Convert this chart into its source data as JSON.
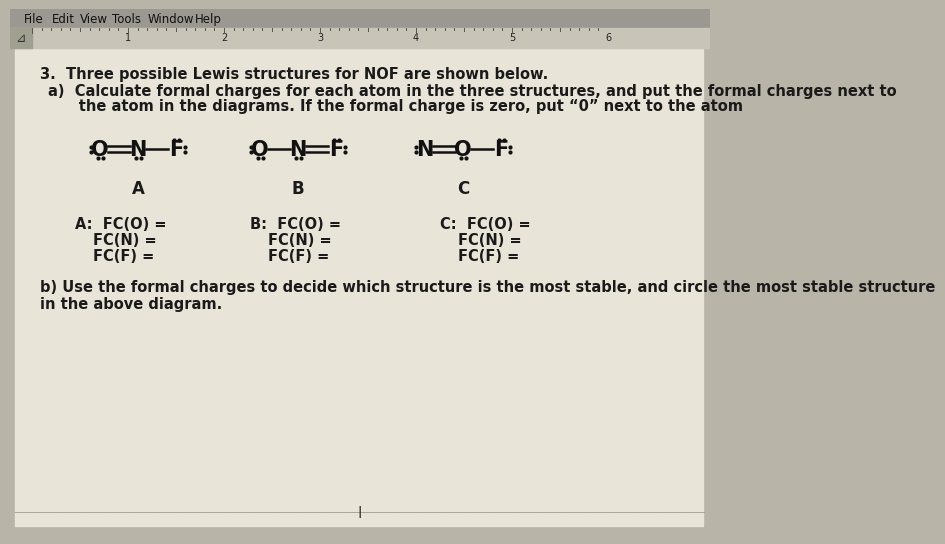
{
  "bg_color": "#b8b4a8",
  "page_bg": "#e8e4d8",
  "toolbar_bg": "#9a9890",
  "ruler_bg": "#c8c4b8",
  "title_text": "3.  Three possible Lewis structures for NOF are shown below.",
  "subtitle_a": "a)  Calculate formal charges for each atom in the three structures, and put the formal charges next to",
  "subtitle_b": "      the atom in the diagrams. If the formal charge is zero, put “0” next to the atom",
  "part_b": "b) Use the formal charges to decide which structure is the most stable, and circle the most stable structure",
  "part_b2": "in the above diagram.",
  "main_font_size": 10.5,
  "struct_font_size": 15,
  "label_font_size": 12,
  "fc_font_size": 10.5,
  "text_color": "#1a1a1a",
  "struct_A_label": "A",
  "struct_B_label": "B",
  "struct_C_label": "C"
}
